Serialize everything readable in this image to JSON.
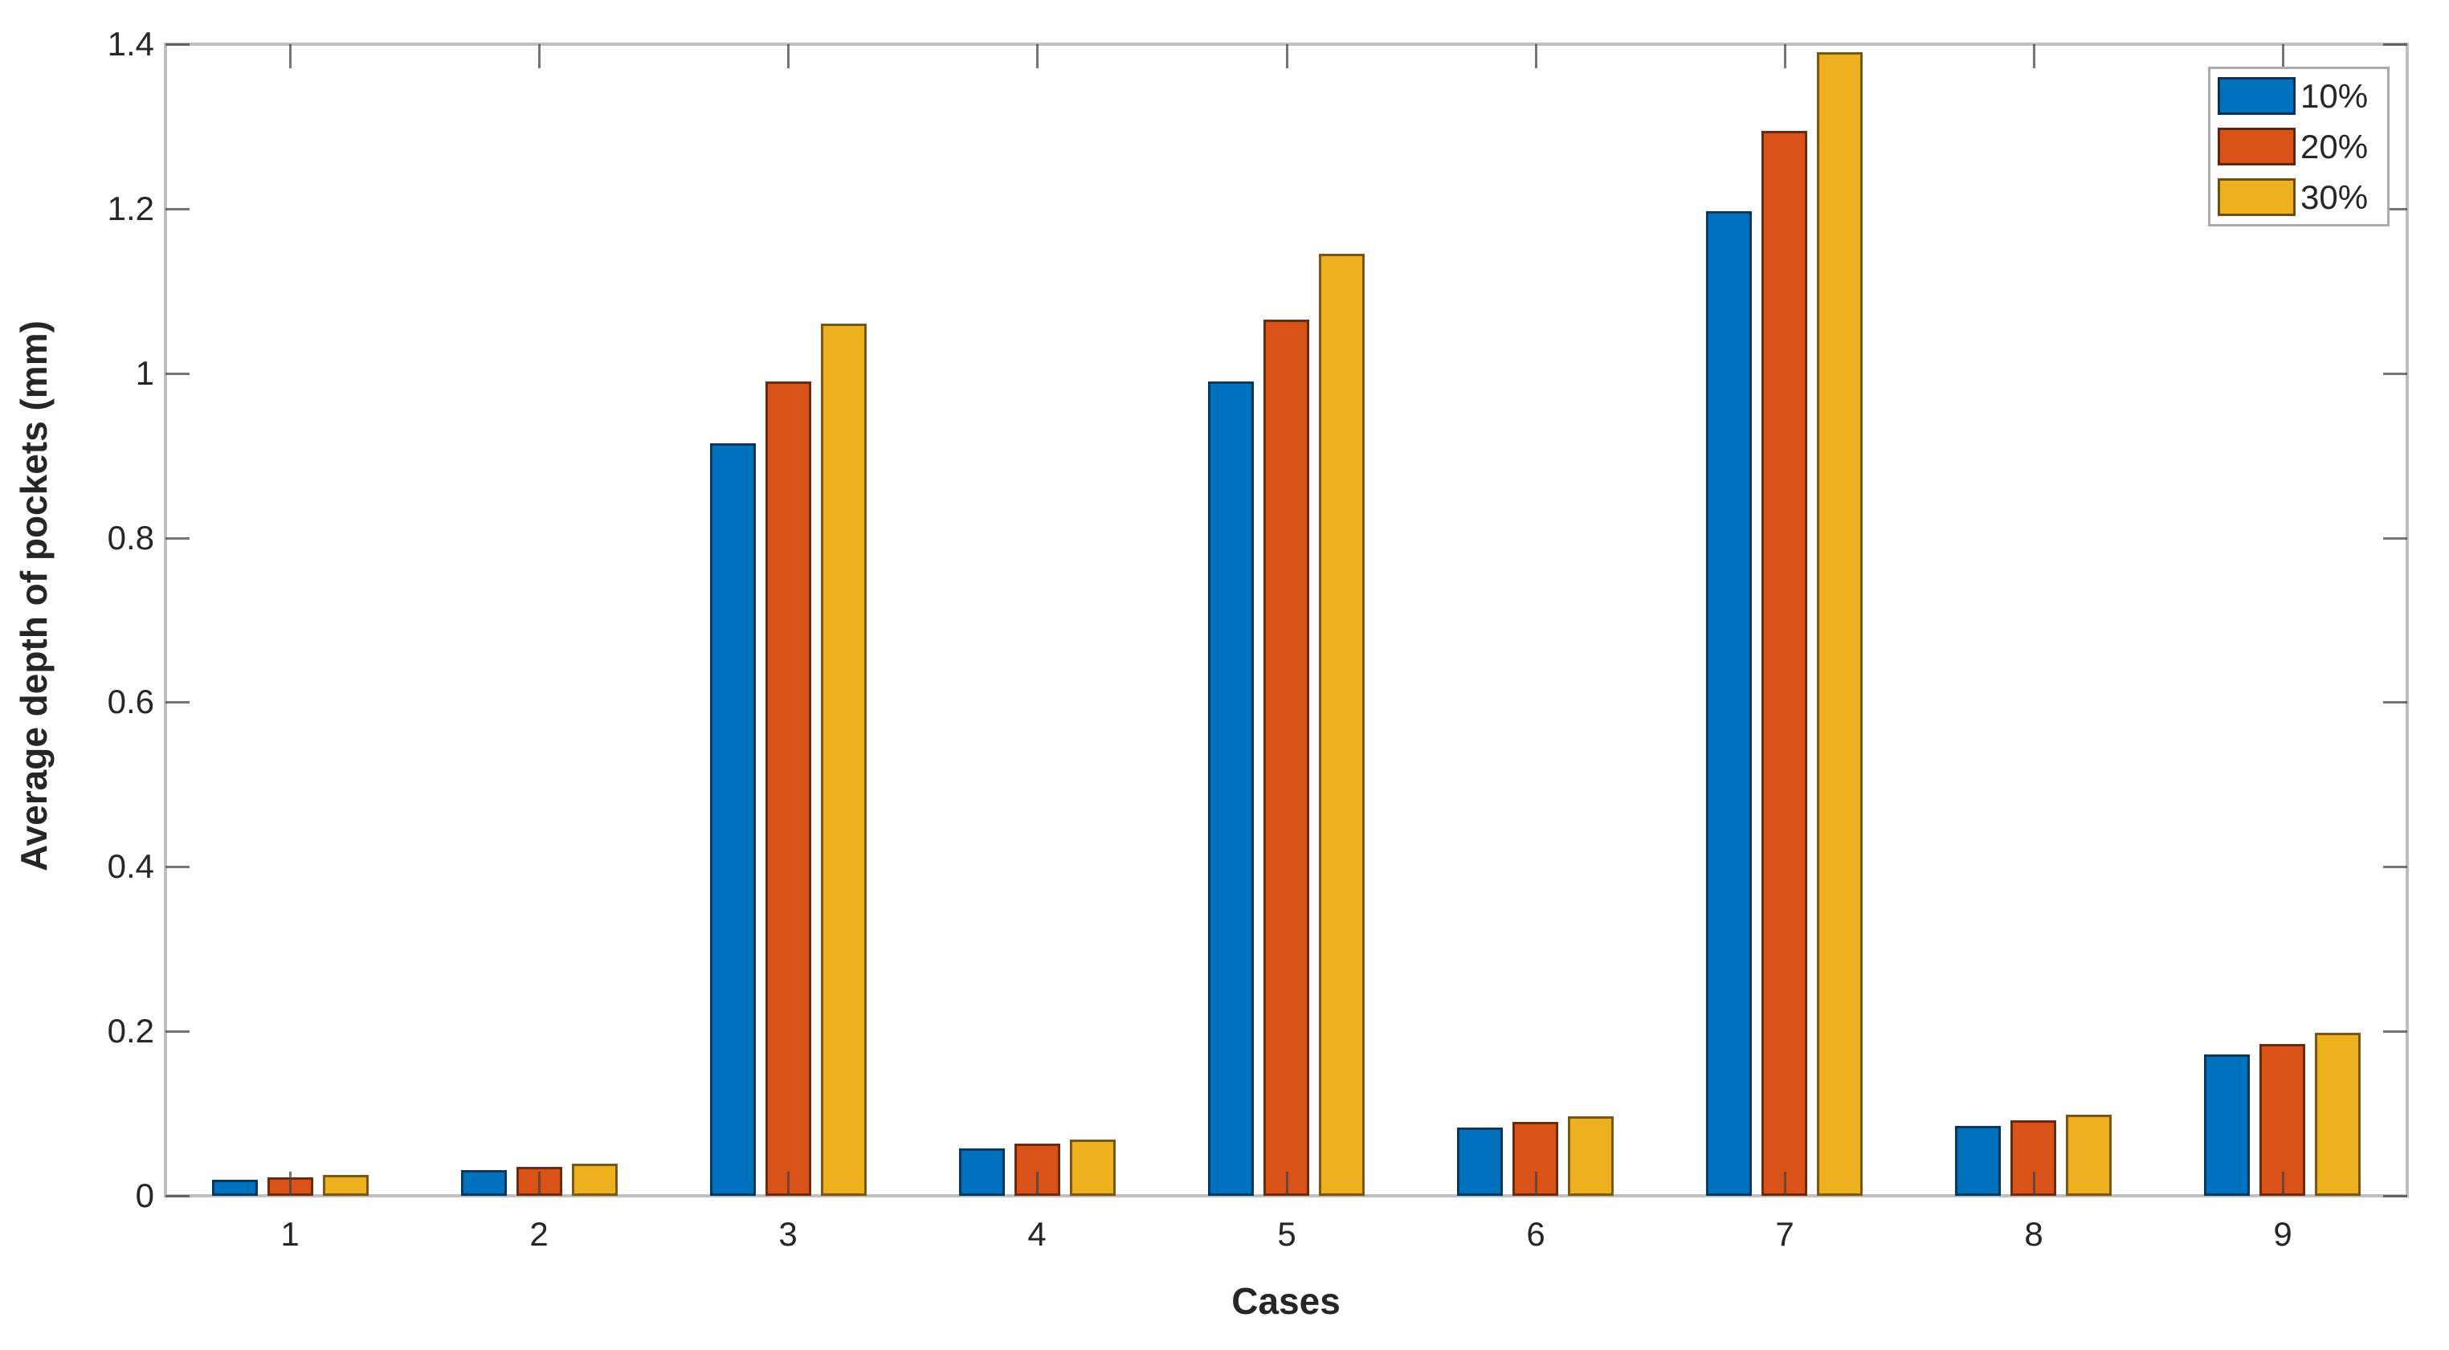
{
  "chart_data": {
    "type": "bar",
    "title": "",
    "xlabel": "Cases",
    "ylabel": "Average depth of pockets (mm)",
    "categories": [
      "1",
      "2",
      "3",
      "4",
      "5",
      "6",
      "7",
      "8",
      "9"
    ],
    "series": [
      {
        "name": "10%",
        "color": "#0072BD",
        "values": [
          0.02,
          0.031,
          0.915,
          0.058,
          0.99,
          0.083,
          1.197,
          0.085,
          0.172
        ]
      },
      {
        "name": "20%",
        "color": "#D95319",
        "values": [
          0.022,
          0.035,
          0.99,
          0.063,
          1.065,
          0.09,
          1.295,
          0.092,
          0.185
        ]
      },
      {
        "name": "30%",
        "color": "#EDB120",
        "values": [
          0.025,
          0.039,
          1.06,
          0.068,
          1.145,
          0.097,
          1.39,
          0.099,
          0.198
        ]
      }
    ],
    "ylim": [
      0,
      1.4
    ],
    "yticks": [
      0,
      0.2,
      0.4,
      0.6,
      0.8,
      1,
      1.2,
      1.4
    ],
    "ytick_labels": [
      "0",
      "0.2",
      "0.4",
      "0.6",
      "0.8",
      "1",
      "1.2",
      "1.4"
    ],
    "legend_position": "top-right",
    "legend_entries": [
      "10%",
      "20%",
      "30%"
    ],
    "grid": false,
    "axis_box_color": "#bfbfbf",
    "tick_color": "#404040",
    "text_color": "#262626",
    "background_color": "#ffffff"
  }
}
